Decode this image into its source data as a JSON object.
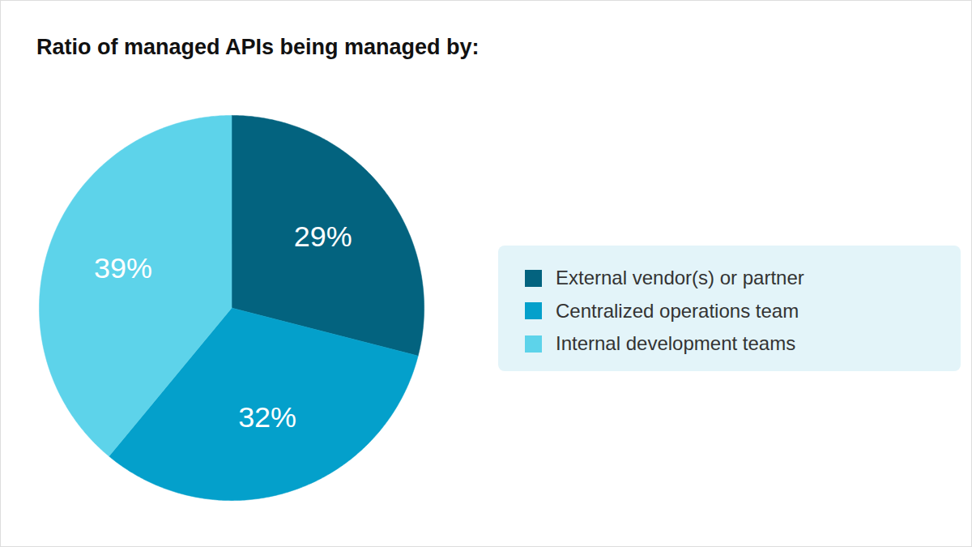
{
  "chart_data": {
    "type": "pie",
    "title": "Ratio of managed APIs being managed by:",
    "categories": [
      "External vendor(s) or partner",
      "Centralized operations team",
      "Internal development teams"
    ],
    "values": [
      29,
      32,
      39
    ],
    "value_labels": [
      "29%",
      "32%",
      "39%"
    ],
    "colors": [
      "#03637f",
      "#04a0cb",
      "#5dd3ea"
    ],
    "data_labels": true,
    "legend": "right",
    "tick_labels": false
  }
}
